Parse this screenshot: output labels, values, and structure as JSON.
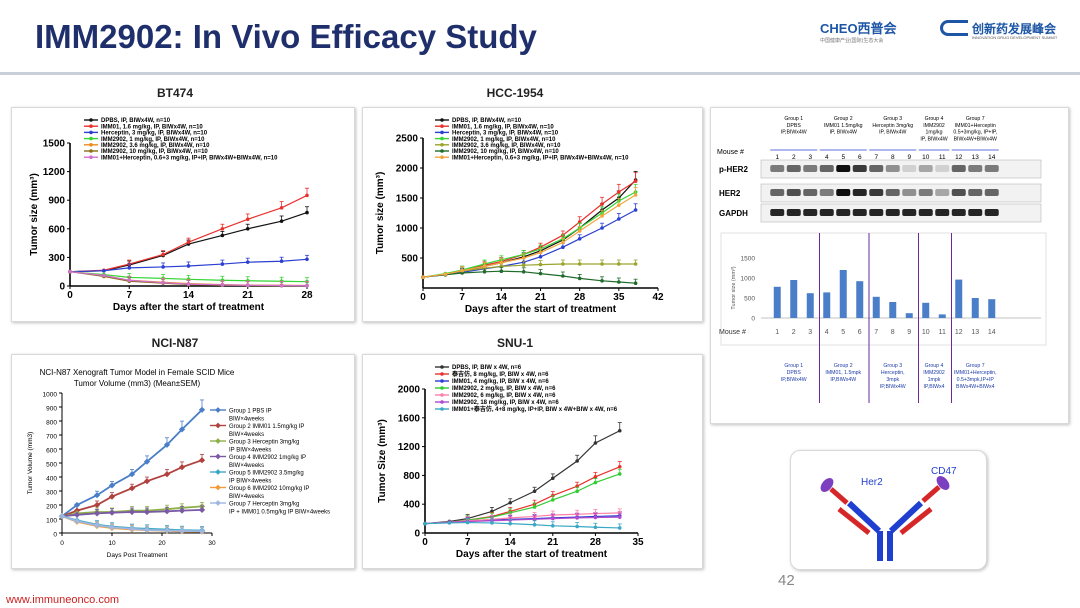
{
  "slide": {
    "title": "IMM2902: In Vivo Efficacy Study",
    "page_number": "42",
    "footer_url": "www.immuneonco.com",
    "logo_left": {
      "text": "CHEO西普会",
      "subtext": "中国健康产业(国际)生态大会"
    },
    "logo_right": {
      "text": "创新药发展峰会",
      "subtext": "INNOVATION DRUG DEVELOPMENT SUMMIT"
    }
  },
  "chart_data": [
    {
      "id": "bt474",
      "type": "line",
      "title": "BT474",
      "xlabel": "Days after the start of treatment",
      "ylabel": "Tumor size (mm³)",
      "xlim": [
        0,
        28
      ],
      "ylim": [
        0,
        1500
      ],
      "xticks": [
        0,
        7,
        14,
        21,
        28
      ],
      "yticks": [
        0,
        300,
        600,
        900,
        1200,
        1500
      ],
      "x": [
        0,
        4,
        7,
        11,
        14,
        18,
        21,
        25,
        28
      ],
      "series": [
        {
          "name": "DPBS, IP, BIWx4W, n=10",
          "color": "#111111",
          "values": [
            150,
            160,
            220,
            320,
            440,
            530,
            600,
            680,
            770
          ]
        },
        {
          "name": "IMM01, 1.6 mg/kg, IP, BIWx4W, n=10",
          "color": "#e8322d",
          "values": [
            150,
            165,
            230,
            330,
            460,
            600,
            700,
            820,
            950
          ]
        },
        {
          "name": "Herceptin, 3 mg/kg, IP, BIWx4W, n=10",
          "color": "#2b3fd0",
          "values": [
            150,
            160,
            190,
            200,
            210,
            230,
            250,
            260,
            280
          ]
        },
        {
          "name": "IMM2902, 1 mg/kg, IP, BIWx4W, n=10",
          "color": "#33d633",
          "values": [
            150,
            120,
            90,
            80,
            70,
            60,
            55,
            50,
            45
          ]
        },
        {
          "name": "IMM2902, 3.6 mg/kg, IP, BIWx4W, n=10",
          "color": "#f08a1e",
          "values": [
            150,
            110,
            60,
            40,
            25,
            15,
            10,
            8,
            5
          ]
        },
        {
          "name": "IMM2902, 10 mg/kg, IP, BIWx4W, n=10",
          "color": "#8a6e1a",
          "values": [
            150,
            100,
            50,
            30,
            15,
            8,
            5,
            3,
            2
          ]
        },
        {
          "name": "IMM01+Herceptin, 0.6+3 mg/kg, IP+IP, BIWx4W+BIWx4W, n=10",
          "color": "#d070d0",
          "values": [
            150,
            110,
            60,
            35,
            20,
            12,
            8,
            5,
            3
          ]
        }
      ]
    },
    {
      "id": "hcc1954",
      "type": "line",
      "title": "HCC-1954",
      "xlabel": "Days after the start of treatment",
      "ylabel": "Tumor size (mm³)",
      "xlim": [
        0,
        42
      ],
      "ylim": [
        0,
        2500
      ],
      "xticks": [
        0,
        7,
        14,
        21,
        28,
        35,
        42
      ],
      "yticks": [
        500,
        1000,
        1500,
        2000,
        2500
      ],
      "x": [
        0,
        4,
        7,
        11,
        14,
        18,
        21,
        25,
        28,
        32,
        35,
        38
      ],
      "series": [
        {
          "name": "DPBS, IP, BIWx4W, n=10",
          "color": "#111111",
          "values": [
            180,
            230,
            280,
            360,
            420,
            520,
            620,
            800,
            1000,
            1300,
            1500,
            1800
          ]
        },
        {
          "name": "IMM01, 1.6 mg/kg, IP, BIWx4W, n=10",
          "color": "#e8322d",
          "values": [
            180,
            230,
            290,
            380,
            440,
            560,
            680,
            880,
            1100,
            1400,
            1600,
            1780
          ]
        },
        {
          "name": "Herceptin, 3 mg/kg, IP, BIWx4W, n=10",
          "color": "#2b3fd0",
          "values": [
            180,
            220,
            260,
            320,
            360,
            430,
            520,
            680,
            820,
            1000,
            1150,
            1300
          ]
        },
        {
          "name": "IMM2902, 1 mg/kg, IP, BIWx4W, n=10",
          "color": "#33d633",
          "values": [
            180,
            240,
            300,
            400,
            470,
            560,
            650,
            820,
            1000,
            1250,
            1450,
            1600
          ]
        },
        {
          "name": "IMM2902, 3.6 mg/kg, IP, BIWx4W, n=10",
          "color": "#9aa32a",
          "values": [
            180,
            230,
            280,
            330,
            360,
            380,
            390,
            400,
            400,
            400,
            400,
            400
          ]
        },
        {
          "name": "IMM2902, 10 mg/kg, IP, BIWx4W, n=10",
          "color": "#1f6b2a",
          "values": [
            180,
            220,
            250,
            270,
            280,
            270,
            240,
            200,
            160,
            120,
            100,
            80
          ]
        },
        {
          "name": "IMM01+Herceptin, 0.6+3 mg/kg, IP+IP, BIWx4W+BIWx4W, n=10",
          "color": "#f5a540",
          "values": [
            180,
            230,
            290,
            360,
            420,
            500,
            590,
            760,
            950,
            1200,
            1380,
            1550
          ]
        }
      ]
    },
    {
      "id": "nci-n87",
      "type": "line",
      "title": "NCI-N87",
      "subtitle": "NCI-N87 Xenograft Tumor Model in Female SCID Mice",
      "subtitle2": "Tumor Volume (mm3) (Mean±SEM)",
      "xlabel": "Days Post Treatment",
      "ylabel": "Tumor Volume (mm3)",
      "xlim": [
        0,
        30
      ],
      "ylim": [
        0,
        1000
      ],
      "xticks": [
        0,
        10,
        20,
        30
      ],
      "yticks": [
        0,
        100,
        200,
        300,
        400,
        500,
        600,
        700,
        800,
        900,
        1000
      ],
      "x": [
        0,
        3,
        7,
        10,
        14,
        17,
        21,
        24,
        28
      ],
      "series": [
        {
          "name": "Group 1 PBS IP BIW×4weeks",
          "color": "#4a7ec8",
          "values": [
            120,
            200,
            270,
            340,
            420,
            510,
            630,
            740,
            880
          ]
        },
        {
          "name": "Group 2 IMM01 1.5mg/kg IP BIW×4weeks",
          "color": "#b0413e",
          "values": [
            120,
            160,
            200,
            260,
            320,
            370,
            420,
            470,
            520
          ]
        },
        {
          "name": "Group 3 Herceptin 3mg/kg IP BIW×4weeks",
          "color": "#8eb04a",
          "values": [
            120,
            140,
            150,
            150,
            160,
            160,
            170,
            180,
            190
          ]
        },
        {
          "name": "Group 4 IMM2902 1mg/kg IP BIW×4weeks",
          "color": "#7a5aa6",
          "values": [
            120,
            130,
            140,
            145,
            150,
            150,
            155,
            160,
            165
          ]
        },
        {
          "name": "Group 5 IMM2902 3.5mg/kg IP BIW×4weeks",
          "color": "#3aa7c4",
          "values": [
            120,
            90,
            60,
            45,
            35,
            30,
            25,
            20,
            18
          ]
        },
        {
          "name": "Group 6 IMM2902 10mg/kg IP BIW×4weeks",
          "color": "#f39a3a",
          "values": [
            120,
            80,
            50,
            35,
            25,
            20,
            15,
            12,
            10
          ]
        },
        {
          "name": "Group 7 Herceptin 3mg/kg IP + IMM01 0.5mg/kg IP BIW×4weeks",
          "color": "#9db7e0",
          "values": [
            120,
            85,
            55,
            40,
            30,
            22,
            18,
            15,
            12
          ]
        }
      ]
    },
    {
      "id": "snu1",
      "type": "line",
      "title": "SNU-1",
      "xlabel": "Days after the start of treatment",
      "ylabel": "Tumor Size (mm³)",
      "xlim": [
        0,
        35
      ],
      "ylim": [
        0,
        2000
      ],
      "xticks": [
        0,
        7,
        14,
        21,
        28,
        35
      ],
      "yticks": [
        0,
        400,
        800,
        1200,
        1600,
        2000
      ],
      "x": [
        0,
        4,
        7,
        11,
        14,
        18,
        21,
        25,
        28,
        32
      ],
      "series": [
        {
          "name": "DPBS, IP, BIW x 4W, n=6",
          "color": "#333333",
          "values": [
            130,
            160,
            200,
            300,
            420,
            580,
            760,
            1000,
            1250,
            1420
          ]
        },
        {
          "name": "泰吉仿, 8 mg/kg, IP, BIW x 4W, n=6",
          "color": "#e8322d",
          "values": [
            130,
            150,
            180,
            230,
            300,
            400,
            520,
            650,
            780,
            920
          ]
        },
        {
          "name": "IMM01, 4 mg/kg, IP, BIW x 4W, n=6",
          "color": "#2b3fd0",
          "values": [
            130,
            150,
            170,
            180,
            190,
            200,
            210,
            220,
            230,
            240
          ]
        },
        {
          "name": "IMM2902, 2 mg/kg, IP, BIW x 4W, n=6",
          "color": "#33cc33",
          "values": [
            130,
            150,
            180,
            220,
            280,
            360,
            460,
            580,
            700,
            820
          ]
        },
        {
          "name": "IMM2902, 6 mg/kg, IP, BIW x 4W, n=6",
          "color": "#ff7fa8",
          "values": [
            130,
            150,
            170,
            190,
            210,
            230,
            250,
            260,
            270,
            280
          ]
        },
        {
          "name": "IMM2902, 18 mg/kg, IP, BIW x 4W, n=6",
          "color": "#b04ad0",
          "values": [
            130,
            150,
            160,
            170,
            180,
            190,
            200,
            210,
            215,
            220
          ]
        },
        {
          "name": "IMM01+泰吉仿, 4+8 mg/kg, IP+IP, BIW x 4W+BIW x 4W, n=6",
          "color": "#3aa7c4",
          "values": [
            130,
            140,
            145,
            140,
            130,
            115,
            100,
            90,
            80,
            70
          ]
        }
      ]
    },
    {
      "id": "western-blot-quant",
      "type": "bar",
      "ylabel": "Tumor size (mm³)",
      "ylim": [
        0,
        1500
      ],
      "yticks": [
        0,
        500,
        1000,
        1500
      ],
      "categories": [
        "1",
        "2",
        "3",
        "4",
        "5",
        "6",
        "7",
        "8",
        "9",
        "10",
        "11",
        "12",
        "13",
        "14"
      ],
      "values": [
        780,
        950,
        620,
        640,
        1200,
        920,
        530,
        400,
        120,
        380,
        90,
        960,
        500,
        470
      ],
      "color": "#4a7ec8"
    }
  ],
  "blot": {
    "header_row_label": "Mouse #",
    "groups": [
      {
        "label": "Group 1\nDPBS\nIP,BIWx4W",
        "mice": [
          "1",
          "2",
          "3"
        ]
      },
      {
        "label": "Group 2\nIMM01 1.5mg/kg\nIP, BIWx4W",
        "mice": [
          "4",
          "5",
          "6"
        ]
      },
      {
        "label": "Group 3\nHerceptin 3mg/kg\nIP, BIWx4W",
        "mice": [
          "7",
          "8",
          "9"
        ]
      },
      {
        "label": "Group 4\nIMM2902\n1mg/kg\nIP, BIWx4W",
        "mice": [
          "10",
          "11"
        ]
      },
      {
        "label": "Group 7\nIMM01+Herceptin\n0.5+3mg/kg, IP+IP,\nBIWx4W+BIWx4W",
        "mice": [
          "12",
          "13",
          "14"
        ]
      }
    ],
    "bands": [
      "p-HER2",
      "HER2",
      "GAPDH"
    ],
    "mouse_label_bottom": "Mouse #",
    "bottom_groups": [
      "Group 1\nDPBS\nIP,BIWx4W",
      "Group 2\nIMM01, 1.5mpk\nIP,BIWx4W",
      "Group 3\nHerceptin,\n3mpk\nIP,BIWx4W",
      "Group 4\nIMM2902\n1mpk\nIP,BIWx4",
      "Group 7\nIMM01+Herceptin,\n0.5+3mpk,IP+IP\nBIWx4W+BIWx4"
    ]
  },
  "antibody": {
    "label_left": "Her2",
    "label_right": "CD47"
  }
}
